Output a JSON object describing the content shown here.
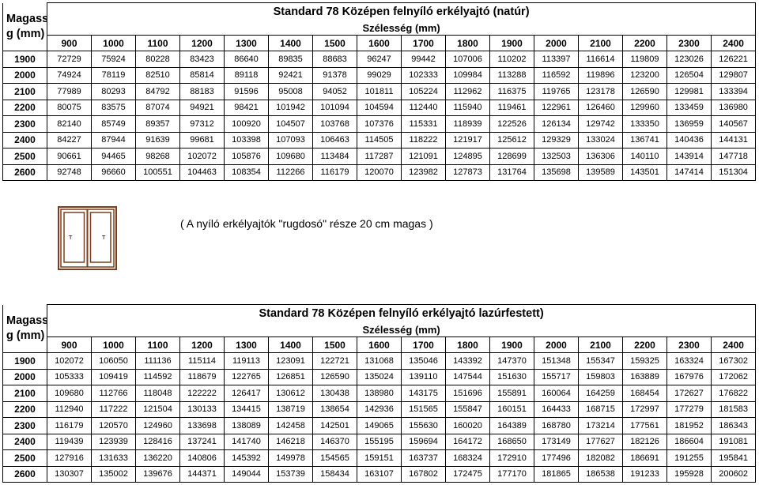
{
  "tables": [
    {
      "title": "Standard 78 Középen felnyíló erkélyajtó (natúr)",
      "height_label_1": "Magassá",
      "height_label_2": "g (mm)",
      "width_label": "Szélesség (mm)",
      "widths": [
        "900",
        "1000",
        "1100",
        "1200",
        "1300",
        "1400",
        "1500",
        "1600",
        "1700",
        "1800",
        "1900",
        "2000",
        "2100",
        "2200",
        "2300",
        "2400"
      ],
      "rows": [
        {
          "h": "1900",
          "v": [
            "72729",
            "75924",
            "80228",
            "83423",
            "86640",
            "89835",
            "88683",
            "96247",
            "99442",
            "107006",
            "110202",
            "113397",
            "116614",
            "119809",
            "123026",
            "126221"
          ]
        },
        {
          "h": "2000",
          "v": [
            "74924",
            "78119",
            "82510",
            "85814",
            "89118",
            "92421",
            "91378",
            "99029",
            "102333",
            "109984",
            "113288",
            "116592",
            "119896",
            "123200",
            "126504",
            "129807"
          ]
        },
        {
          "h": "2100",
          "v": [
            "77989",
            "80293",
            "84792",
            "88183",
            "91596",
            "95008",
            "94052",
            "101811",
            "105224",
            "112962",
            "116375",
            "119765",
            "123178",
            "126590",
            "129981",
            "133394"
          ]
        },
        {
          "h": "2200",
          "v": [
            "80075",
            "83575",
            "87074",
            "94921",
            "98421",
            "101942",
            "101094",
            "104594",
            "112440",
            "115940",
            "119461",
            "122961",
            "126460",
            "129960",
            "133459",
            "136980"
          ]
        },
        {
          "h": "2300",
          "v": [
            "82140",
            "85749",
            "89357",
            "97312",
            "100920",
            "104507",
            "103768",
            "107376",
            "115331",
            "118939",
            "122526",
            "126134",
            "129742",
            "133350",
            "136959",
            "140567"
          ]
        },
        {
          "h": "2400",
          "v": [
            "84227",
            "87944",
            "91639",
            "99681",
            "103398",
            "107093",
            "106463",
            "114505",
            "118222",
            "121917",
            "125612",
            "129329",
            "133024",
            "136741",
            "140436",
            "144131"
          ]
        },
        {
          "h": "2500",
          "v": [
            "90661",
            "94465",
            "98268",
            "102072",
            "105876",
            "109680",
            "113484",
            "117287",
            "121091",
            "124895",
            "128699",
            "132503",
            "136306",
            "140110",
            "143914",
            "147718"
          ]
        },
        {
          "h": "2600",
          "v": [
            "92748",
            "96660",
            "100551",
            "104463",
            "108354",
            "112266",
            "116179",
            "120070",
            "123982",
            "127873",
            "131764",
            "135698",
            "139589",
            "143501",
            "147414",
            "151304"
          ]
        }
      ]
    },
    {
      "title": "Standard 78 Középen felnyíló erkélyajtó lazúrfestett)",
      "height_label_1": "Magassá",
      "height_label_2": "g (mm)",
      "width_label": "Szélesség (mm)",
      "widths": [
        "900",
        "1000",
        "1100",
        "1200",
        "1300",
        "1400",
        "1500",
        "1600",
        "1700",
        "1800",
        "1900",
        "2000",
        "2100",
        "2200",
        "2300",
        "2400"
      ],
      "rows": [
        {
          "h": "1900",
          "v": [
            "102072",
            "106050",
            "111136",
            "115114",
            "119113",
            "123091",
            "122721",
            "131068",
            "135046",
            "143392",
            "147370",
            "151348",
            "155347",
            "159325",
            "163324",
            "167302"
          ]
        },
        {
          "h": "2000",
          "v": [
            "105333",
            "109419",
            "114592",
            "118679",
            "122765",
            "126851",
            "126590",
            "135024",
            "139110",
            "147544",
            "151630",
            "155717",
            "159803",
            "163889",
            "167976",
            "172062"
          ]
        },
        {
          "h": "2100",
          "v": [
            "109680",
            "112766",
            "118048",
            "122222",
            "126417",
            "130612",
            "130438",
            "138980",
            "143175",
            "151696",
            "155891",
            "160064",
            "164259",
            "168454",
            "172627",
            "176822"
          ]
        },
        {
          "h": "2200",
          "v": [
            "112940",
            "117222",
            "121504",
            "130133",
            "134415",
            "138719",
            "138654",
            "142936",
            "151565",
            "155847",
            "160151",
            "164433",
            "168715",
            "172997",
            "177279",
            "181583"
          ]
        },
        {
          "h": "2300",
          "v": [
            "116179",
            "120570",
            "124960",
            "133698",
            "138089",
            "142458",
            "142501",
            "149065",
            "155630",
            "160020",
            "164389",
            "168780",
            "173214",
            "177561",
            "181952",
            "186343"
          ]
        },
        {
          "h": "2400",
          "v": [
            "119439",
            "123939",
            "128416",
            "137241",
            "141740",
            "146218",
            "146370",
            "155195",
            "159694",
            "164172",
            "168650",
            "173149",
            "177627",
            "182126",
            "186604",
            "191081"
          ]
        },
        {
          "h": "2500",
          "v": [
            "127916",
            "131633",
            "136220",
            "140806",
            "145392",
            "149978",
            "154565",
            "159151",
            "163737",
            "168324",
            "172910",
            "177496",
            "182082",
            "186691",
            "191255",
            "195841"
          ]
        },
        {
          "h": "2600",
          "v": [
            "130307",
            "135002",
            "139676",
            "144371",
            "149044",
            "153739",
            "158434",
            "163107",
            "167802",
            "172475",
            "177170",
            "181865",
            "186538",
            "191233",
            "195928",
            "200602"
          ]
        }
      ]
    }
  ],
  "illustration": {
    "icon": "double-door-icon",
    "frame_color": "#7a3e1e",
    "glass_color": "#ffffff",
    "left_label": "T",
    "right_label": "T"
  },
  "note": "( A nyíló erkélyajtók \"rugdosó\" része 20 cm magas )"
}
